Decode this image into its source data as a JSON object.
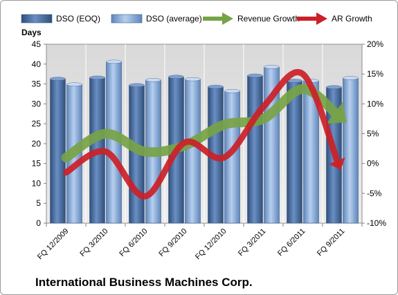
{
  "chart_data": {
    "type": "bar-line",
    "company": "International Business Machines Corp.",
    "ylabel": "Days",
    "ylim": [
      0,
      45
    ],
    "yticks": [
      "0",
      "5",
      "10",
      "15",
      "20",
      "25",
      "30",
      "35",
      "40",
      "45"
    ],
    "y2lim": [
      -10,
      20
    ],
    "y2ticks": [
      "-10%",
      "-5%",
      "0%",
      "5%",
      "10%",
      "15%",
      "20%"
    ],
    "categories": [
      "FQ 12/2009",
      "FQ 3/2010",
      "FQ 6/2010",
      "FQ 9/2010",
      "FQ 12/2010",
      "FQ 3/2011",
      "FQ 6/2011",
      "FQ 9/2011"
    ],
    "legend_position": "top",
    "grid": "vertical",
    "series": [
      {
        "name": "DSO (EOQ)",
        "type": "bar",
        "axis": "left",
        "color": "#4a6fa5",
        "values": [
          36.3,
          36.6,
          34.7,
          36.8,
          34.3,
          37.1,
          35.8,
          34.2
        ]
      },
      {
        "name": "DSO (average)",
        "type": "bar",
        "axis": "left",
        "color": "#8fb1da",
        "values": [
          34.9,
          40.6,
          36.0,
          36.2,
          33.2,
          39.3,
          35.8,
          36.5
        ]
      },
      {
        "name": "Revenue Growth",
        "type": "line",
        "axis": "right",
        "color": "#77a347",
        "values": [
          1.0,
          5.0,
          2.0,
          3.0,
          6.5,
          7.5,
          12.5,
          8.0
        ]
      },
      {
        "name": "AR Growth",
        "type": "line",
        "axis": "right",
        "color": "#cc2027",
        "values": [
          -1.5,
          2.0,
          -5.5,
          3.5,
          1.0,
          9.5,
          15.0,
          0.0
        ]
      }
    ]
  }
}
